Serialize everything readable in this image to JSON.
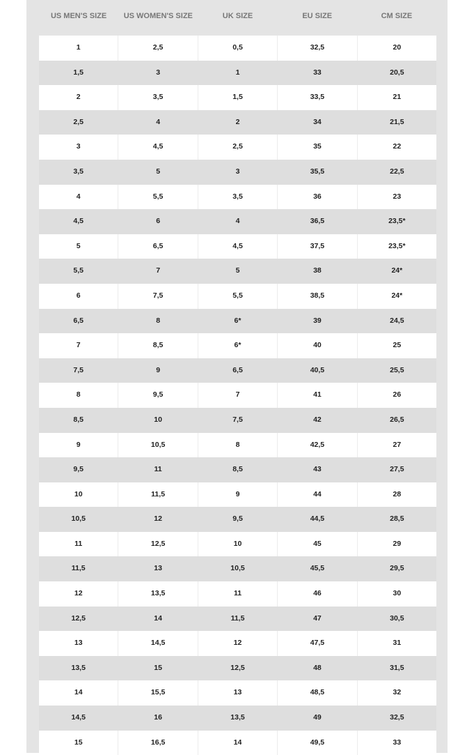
{
  "headers": [
    "US MEN'S SIZE",
    "US WOMEN'S SIZE",
    "UK SIZE",
    "EU SIZE",
    "CM SIZE"
  ],
  "rows": [
    [
      "1",
      "2,5",
      "0,5",
      "32,5",
      "20"
    ],
    [
      "1,5",
      "3",
      "1",
      "33",
      "20,5"
    ],
    [
      "2",
      "3,5",
      "1,5",
      "33,5",
      "21"
    ],
    [
      "2,5",
      "4",
      "2",
      "34",
      "21,5"
    ],
    [
      "3",
      "4,5",
      "2,5",
      "35",
      "22"
    ],
    [
      "3,5",
      "5",
      "3",
      "35,5",
      "22,5"
    ],
    [
      "4",
      "5,5",
      "3,5",
      "36",
      "23"
    ],
    [
      "4,5",
      "6",
      "4",
      "36,5",
      "23,5*"
    ],
    [
      "5",
      "6,5",
      "4,5",
      "37,5",
      "23,5*"
    ],
    [
      "5,5",
      "7",
      "5",
      "38",
      "24*"
    ],
    [
      "6",
      "7,5",
      "5,5",
      "38,5",
      "24*"
    ],
    [
      "6,5",
      "8",
      "6*",
      "39",
      "24,5"
    ],
    [
      "7",
      "8,5",
      "6*",
      "40",
      "25"
    ],
    [
      "7,5",
      "9",
      "6,5",
      "40,5",
      "25,5"
    ],
    [
      "8",
      "9,5",
      "7",
      "41",
      "26"
    ],
    [
      "8,5",
      "10",
      "7,5",
      "42",
      "26,5"
    ],
    [
      "9",
      "10,5",
      "8",
      "42,5",
      "27"
    ],
    [
      "9,5",
      "11",
      "8,5",
      "43",
      "27,5"
    ],
    [
      "10",
      "11,5",
      "9",
      "44",
      "28"
    ],
    [
      "10,5",
      "12",
      "9,5",
      "44,5",
      "28,5"
    ],
    [
      "11",
      "12,5",
      "10",
      "45",
      "29"
    ],
    [
      "11,5",
      "13",
      "10,5",
      "45,5",
      "29,5"
    ],
    [
      "12",
      "13,5",
      "11",
      "46",
      "30"
    ],
    [
      "12,5",
      "14",
      "11,5",
      "47",
      "30,5"
    ],
    [
      "13",
      "14,5",
      "12",
      "47,5",
      "31"
    ],
    [
      "13,5",
      "15",
      "12,5",
      "48",
      "31,5"
    ],
    [
      "14",
      "15,5",
      "13",
      "48,5",
      "32"
    ],
    [
      "14,5",
      "16",
      "13,5",
      "49",
      "32,5"
    ],
    [
      "15",
      "16,5",
      "14",
      "49,5",
      "33"
    ]
  ]
}
